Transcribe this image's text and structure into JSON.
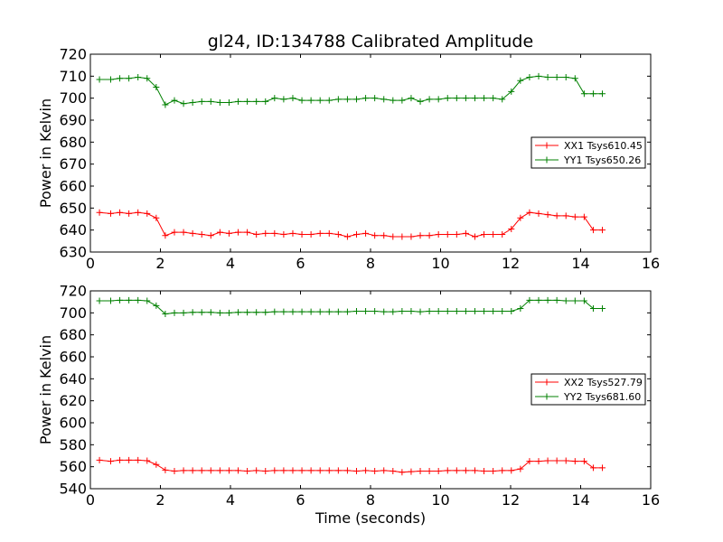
{
  "chart_data": [
    {
      "type": "line",
      "title": "gl24, ID:134788 Calibrated Amplitude",
      "xlabel": "",
      "ylabel": "Power in Kelvin",
      "xlim": [
        0,
        16
      ],
      "ylim": [
        630,
        720
      ],
      "xticks": [
        "0",
        "2",
        "4",
        "6",
        "8",
        "10",
        "12",
        "14",
        "16"
      ],
      "yticks": [
        "630",
        "640",
        "650",
        "660",
        "670",
        "680",
        "690",
        "700",
        "710",
        "720"
      ],
      "legend_position": "center-right",
      "series": [
        {
          "name": "XX1 Tsys610.45",
          "color": "#ff0000",
          "x": [
            0.26,
            0.58,
            0.84,
            1.1,
            1.36,
            1.62,
            1.88,
            2.14,
            2.4,
            2.66,
            2.92,
            3.18,
            3.44,
            3.7,
            3.96,
            4.22,
            4.48,
            4.74,
            5.0,
            5.26,
            5.52,
            5.78,
            6.04,
            6.3,
            6.56,
            6.82,
            7.08,
            7.34,
            7.6,
            7.86,
            8.12,
            8.38,
            8.64,
            8.9,
            9.16,
            9.42,
            9.68,
            9.94,
            10.2,
            10.46,
            10.72,
            10.98,
            11.24,
            11.5,
            11.76,
            12.02,
            12.28,
            12.54,
            12.8,
            13.06,
            13.32,
            13.58,
            13.84,
            14.1,
            14.36,
            14.62
          ],
          "y": [
            648,
            647.5,
            648,
            647.5,
            648,
            647.5,
            645.5,
            637.5,
            639,
            639,
            638.5,
            638,
            637.5,
            639,
            638.5,
            639,
            639,
            638,
            638.5,
            638.5,
            638,
            638.5,
            638,
            638,
            638.5,
            638.5,
            638,
            637,
            638,
            638.5,
            637.5,
            637.5,
            637,
            637,
            637,
            637.5,
            637.5,
            638,
            638,
            638,
            638.5,
            637,
            638,
            638,
            638,
            640.5,
            645.5,
            648,
            647.5,
            647,
            646.5,
            646.5,
            646,
            646,
            640,
            640
          ]
        },
        {
          "name": "YY1 Tsys650.26",
          "color": "#008000",
          "x": [
            0.26,
            0.58,
            0.84,
            1.1,
            1.36,
            1.62,
            1.88,
            2.14,
            2.4,
            2.66,
            2.92,
            3.18,
            3.44,
            3.7,
            3.96,
            4.22,
            4.48,
            4.74,
            5.0,
            5.26,
            5.52,
            5.78,
            6.04,
            6.3,
            6.56,
            6.82,
            7.08,
            7.34,
            7.6,
            7.86,
            8.12,
            8.38,
            8.64,
            8.9,
            9.16,
            9.42,
            9.68,
            9.94,
            10.2,
            10.46,
            10.72,
            10.98,
            11.24,
            11.5,
            11.76,
            12.02,
            12.28,
            12.54,
            12.8,
            13.06,
            13.32,
            13.58,
            13.84,
            14.1,
            14.36,
            14.62
          ],
          "y": [
            708.5,
            708.5,
            709,
            709,
            709.5,
            709,
            705,
            697,
            699,
            697.5,
            698,
            698.5,
            698.5,
            698,
            698,
            698.5,
            698.5,
            698.5,
            698.5,
            700,
            699.5,
            700,
            699,
            699,
            699,
            699,
            699.5,
            699.5,
            699.5,
            700,
            700,
            699.5,
            699,
            699,
            700,
            698.5,
            699.5,
            699.5,
            700,
            700,
            700,
            700,
            700,
            700,
            699.5,
            703,
            708,
            709.5,
            710,
            709.5,
            709.5,
            709.5,
            709,
            702,
            702,
            702
          ]
        }
      ]
    },
    {
      "type": "line",
      "title": "",
      "xlabel": "Time (seconds)",
      "ylabel": "Power in Kelvin",
      "xlim": [
        0,
        16
      ],
      "ylim": [
        540,
        720
      ],
      "xticks": [
        "0",
        "2",
        "4",
        "6",
        "8",
        "10",
        "12",
        "14",
        "16"
      ],
      "yticks": [
        "540",
        "560",
        "580",
        "600",
        "620",
        "640",
        "660",
        "680",
        "700",
        "720"
      ],
      "legend_position": "center-right",
      "series": [
        {
          "name": "XX2 Tsys527.79",
          "color": "#ff0000",
          "x": [
            0.26,
            0.58,
            0.84,
            1.1,
            1.36,
            1.62,
            1.88,
            2.14,
            2.4,
            2.66,
            2.92,
            3.18,
            3.44,
            3.7,
            3.96,
            4.22,
            4.48,
            4.74,
            5.0,
            5.26,
            5.52,
            5.78,
            6.04,
            6.3,
            6.56,
            6.82,
            7.08,
            7.34,
            7.6,
            7.86,
            8.12,
            8.38,
            8.64,
            8.9,
            9.16,
            9.42,
            9.68,
            9.94,
            10.2,
            10.46,
            10.72,
            10.98,
            11.24,
            11.5,
            11.76,
            12.02,
            12.28,
            12.54,
            12.8,
            13.06,
            13.32,
            13.58,
            13.84,
            14.1,
            14.36,
            14.62
          ],
          "y": [
            566,
            565,
            566,
            566,
            566,
            565.5,
            562,
            557,
            556,
            556.5,
            556.5,
            556.5,
            556.5,
            556.5,
            556.5,
            556.5,
            556,
            556.5,
            556,
            556.5,
            556.5,
            556.5,
            556.5,
            556.5,
            556.5,
            556.5,
            556.5,
            556.5,
            556,
            556.5,
            556,
            556.5,
            556,
            555,
            555.5,
            556,
            556,
            556,
            556.5,
            556.5,
            556.5,
            556.5,
            556,
            556,
            556.5,
            556.5,
            558,
            565,
            565,
            565.5,
            565.5,
            565.5,
            565,
            565,
            559,
            559
          ]
        },
        {
          "name": "YY2 Tsys681.60",
          "color": "#008000",
          "x": [
            0.26,
            0.58,
            0.84,
            1.1,
            1.36,
            1.62,
            1.88,
            2.14,
            2.4,
            2.66,
            2.92,
            3.18,
            3.44,
            3.7,
            3.96,
            4.22,
            4.48,
            4.74,
            5.0,
            5.26,
            5.52,
            5.78,
            6.04,
            6.3,
            6.56,
            6.82,
            7.08,
            7.34,
            7.6,
            7.86,
            8.12,
            8.38,
            8.64,
            8.9,
            9.16,
            9.42,
            9.68,
            9.94,
            10.2,
            10.46,
            10.72,
            10.98,
            11.24,
            11.5,
            11.76,
            12.02,
            12.28,
            12.54,
            12.8,
            13.06,
            13.32,
            13.58,
            13.84,
            14.1,
            14.36,
            14.62
          ],
          "y": [
            711,
            711,
            711.5,
            711.5,
            711.5,
            711,
            706.5,
            699,
            700,
            700,
            700.5,
            700.5,
            700.5,
            700,
            700,
            700.5,
            700.5,
            700.5,
            700.5,
            701,
            701,
            701,
            701,
            701,
            701,
            701,
            701,
            701,
            701.5,
            701.5,
            701.5,
            701,
            701,
            701.5,
            701.5,
            701,
            701.5,
            701.5,
            701.5,
            701.5,
            701.5,
            701.5,
            701.5,
            701.5,
            701.5,
            701.5,
            704,
            711.5,
            711.5,
            711.5,
            711.5,
            711,
            711,
            711,
            704,
            704
          ]
        }
      ]
    }
  ]
}
